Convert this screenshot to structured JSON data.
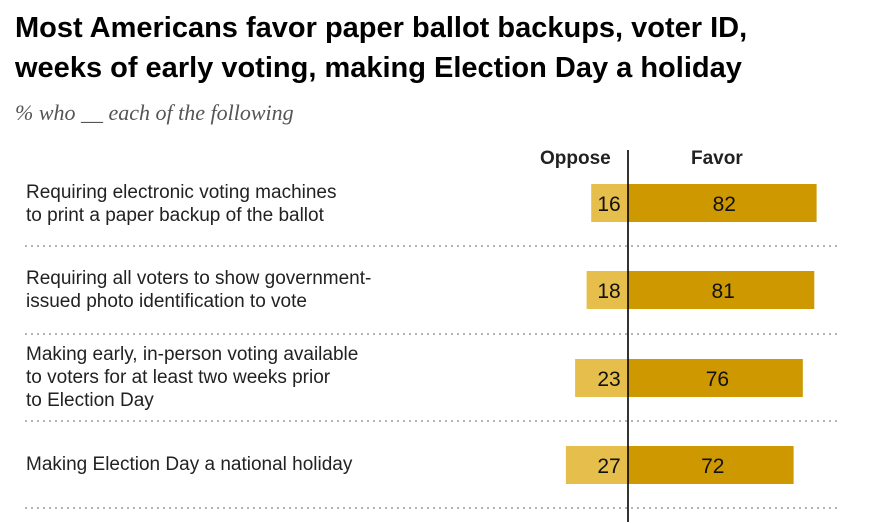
{
  "title_line1": "Most Americans favor paper ballot backups, voter ID,",
  "title_line2": "weeks of early voting, making Election Day a holiday",
  "subtitle": "% who __ each of the following",
  "colors": {
    "oppose": "#e6be4c",
    "favor": "#cd9800",
    "divider": "#000000"
  },
  "chart_data": {
    "type": "bar",
    "orientation": "horizontal-diverging",
    "series_names": [
      "Oppose",
      "Favor"
    ],
    "categories": [
      [
        "Requiring electronic voting machines",
        "to print a paper backup of the ballot"
      ],
      [
        "Requiring all voters to show government-",
        "issued photo identification to vote"
      ],
      [
        "Making early, in-person voting available",
        "to voters for at least two weeks prior",
        "to Election Day"
      ],
      [
        "Making Election Day a national holiday"
      ]
    ],
    "oppose": [
      16,
      18,
      23,
      27
    ],
    "favor": [
      82,
      81,
      76,
      72
    ]
  }
}
